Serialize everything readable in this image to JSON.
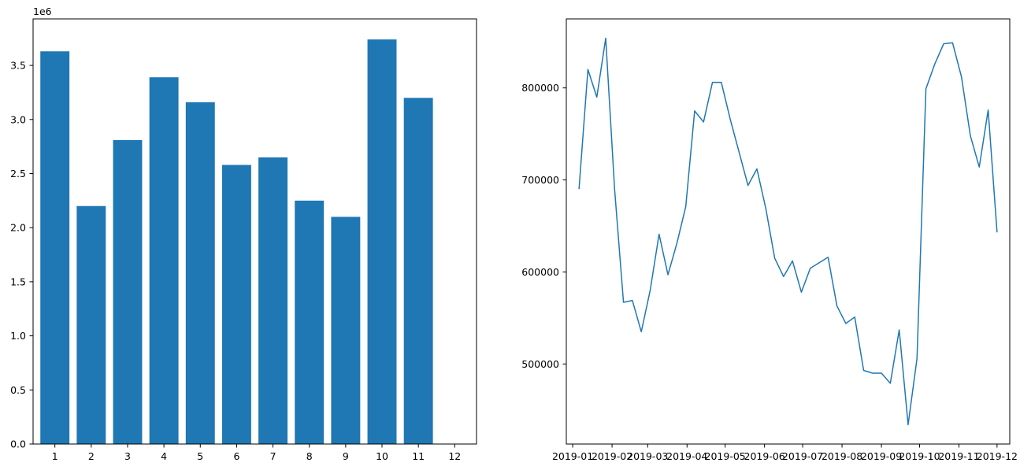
{
  "chart_data": [
    {
      "type": "bar",
      "color": "#1f77b4",
      "categories": [
        "1",
        "2",
        "3",
        "4",
        "5",
        "6",
        "7",
        "8",
        "9",
        "10",
        "11",
        "12"
      ],
      "values": [
        3630000,
        2200000,
        2810000,
        3390000,
        3160000,
        2580000,
        2650000,
        2250000,
        2100000,
        3740000,
        3200000,
        null
      ],
      "y_ticks": [
        0.0,
        0.5,
        1.0,
        1.5,
        2.0,
        2.5,
        3.0,
        3.5
      ],
      "y_tick_labels": [
        "0.0",
        "0.5",
        "1.0",
        "1.5",
        "2.0",
        "2.5",
        "3.0",
        "3.5"
      ],
      "y_offset_label": "1e6",
      "y_scale": 1000000,
      "xlim": [
        0.4,
        12.6
      ],
      "ylim": [
        0,
        3.93
      ],
      "grid": false,
      "title": "",
      "xlabel": "",
      "ylabel": ""
    },
    {
      "type": "line",
      "color": "#1f77b4",
      "series": [
        {
          "x": [
            "2019-01-06",
            "2019-01-13",
            "2019-01-20",
            "2019-01-27",
            "2019-02-03",
            "2019-02-10",
            "2019-02-17",
            "2019-02-24",
            "2019-03-03",
            "2019-03-10",
            "2019-03-17",
            "2019-03-24",
            "2019-03-31",
            "2019-04-07",
            "2019-04-14",
            "2019-04-21",
            "2019-04-28",
            "2019-05-05",
            "2019-05-12",
            "2019-05-19",
            "2019-05-26",
            "2019-06-02",
            "2019-06-09",
            "2019-06-16",
            "2019-06-23",
            "2019-06-30",
            "2019-07-07",
            "2019-07-14",
            "2019-07-21",
            "2019-07-28",
            "2019-08-04",
            "2019-08-11",
            "2019-08-18",
            "2019-08-25",
            "2019-09-01",
            "2019-09-08",
            "2019-09-15",
            "2019-09-22",
            "2019-09-29",
            "2019-10-06",
            "2019-10-13",
            "2019-10-20",
            "2019-10-27",
            "2019-11-03",
            "2019-11-10",
            "2019-11-17",
            "2019-11-24",
            "2019-12-01"
          ],
          "values": [
            690000,
            820000,
            790000,
            854000,
            690000,
            567000,
            569000,
            535000,
            580000,
            641000,
            597000,
            631000,
            671000,
            775000,
            763000,
            806000,
            806000,
            766000,
            730000,
            694000,
            712000,
            669000,
            615000,
            595000,
            612000,
            578000,
            604000,
            610000,
            616000,
            563000,
            544000,
            551000,
            493000,
            490000,
            490000,
            479000,
            537000,
            434000,
            506000,
            799000,
            826000,
            848000,
            849000,
            812000,
            748000,
            714000,
            776000,
            643000
          ]
        }
      ],
      "x_ticks": [
        "2019-01",
        "2019-02",
        "2019-03",
        "2019-04",
        "2019-05",
        "2019-06",
        "2019-07",
        "2019-08",
        "2019-09",
        "2019-10",
        "2019-11",
        "2019-12"
      ],
      "y_ticks": [
        500000,
        600000,
        700000,
        800000
      ],
      "y_tick_labels": [
        "500000",
        "600000",
        "700000",
        "800000"
      ],
      "xlim": [
        "2018-12-27",
        "2019-12-11"
      ],
      "ylim": [
        413000,
        875000
      ],
      "grid": false,
      "title": "",
      "xlabel": "",
      "ylabel": ""
    }
  ]
}
